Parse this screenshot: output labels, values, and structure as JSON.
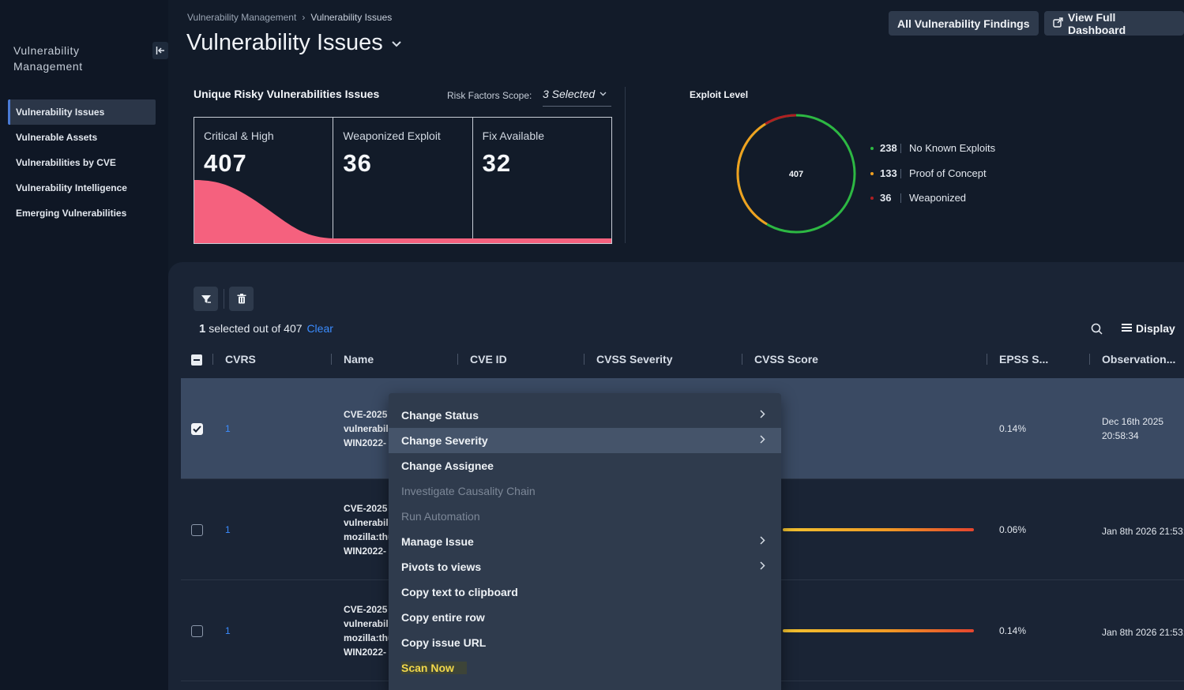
{
  "sidebar": {
    "title": "Vulnerability Management",
    "collapse_icon": "collapse-left-icon",
    "items": [
      {
        "label": "Vulnerability Issues"
      },
      {
        "label": "Vulnerable Assets"
      },
      {
        "label": "Vulnerabilities by CVE"
      },
      {
        "label": "Vulnerability Intelligence"
      },
      {
        "label": "Emerging Vulnerabilities"
      }
    ],
    "active_item": "Vulnerability Issues"
  },
  "breadcrumb": {
    "parent": "Vulnerability Management",
    "separator": "›",
    "current": "Vulnerability Issues"
  },
  "header": {
    "title": "Vulnerability Issues",
    "all_findings_label": "All Vulnerability Findings",
    "dashboard_label": "View Full Dashboard"
  },
  "metrics": {
    "title": "Unique Risky Vulnerabilities Issues",
    "scope_label": "Risk Factors Scope:",
    "scope_value": "3 Selected",
    "cards": [
      {
        "label": "Critical & High",
        "value": "407"
      },
      {
        "label": "Weaponized Exploit",
        "value": "36"
      },
      {
        "label": "Fix Available",
        "value": "32"
      }
    ],
    "accent_color": "#f5617e"
  },
  "exploit": {
    "title": "Exploit Level",
    "total": "407",
    "legend": [
      {
        "count": "238",
        "label": "No Known Exploits",
        "color": "#2db843"
      },
      {
        "count": "133",
        "label": "Proof of Concept",
        "color": "#f0a020"
      },
      {
        "count": "36",
        "label": "Weaponized",
        "color": "#b01e22"
      }
    ]
  },
  "table": {
    "selection": {
      "count": "1",
      "text": "selected out of 407",
      "clear": "Clear"
    },
    "display_label": "Display",
    "columns": [
      "CVRS",
      "Name",
      "CVE ID",
      "CVSS Severity",
      "CVSS Score",
      "EPSS S...",
      "Observation..."
    ],
    "rows": [
      {
        "checked": true,
        "cvrs": "1",
        "name": [
          "CVE-2025",
          "vulnerabili",
          "WIN2022-"
        ],
        "epss": "0.14%",
        "obs": [
          "Dec 16th 2025",
          "20:58:34"
        ]
      },
      {
        "checked": false,
        "cvrs": "1",
        "name": [
          "CVE-2025",
          "vulnerabili",
          "mozilla:thu",
          "WIN2022-"
        ],
        "epss": "0.06%",
        "obs": [
          "Jan 8th 2026 21:53:"
        ]
      },
      {
        "checked": false,
        "cvrs": "1",
        "name": [
          "CVE-2025",
          "vulnerabili",
          "mozilla:thu",
          "WIN2022-"
        ],
        "epss": "0.14%",
        "obs": [
          "Jan 8th 2026 21:53:"
        ]
      }
    ]
  },
  "context_menu": {
    "items": [
      {
        "label": "Change Status",
        "submenu": true,
        "disabled": false
      },
      {
        "label": "Change Severity",
        "submenu": true,
        "disabled": false,
        "hover": true
      },
      {
        "label": "Change Assignee",
        "submenu": false,
        "disabled": false
      },
      {
        "label": "Investigate Causality Chain",
        "submenu": false,
        "disabled": true
      },
      {
        "label": "Run Automation",
        "submenu": false,
        "disabled": true
      },
      {
        "label": "Manage Issue",
        "submenu": true,
        "disabled": false
      },
      {
        "label": "Pivots to views",
        "submenu": true,
        "disabled": false
      },
      {
        "label": "Copy text to clipboard",
        "submenu": false,
        "disabled": false
      },
      {
        "label": "Copy entire row",
        "submenu": false,
        "disabled": false
      },
      {
        "label": "Copy issue URL",
        "submenu": false,
        "disabled": false
      },
      {
        "label": "Scan Now",
        "submenu": false,
        "disabled": false,
        "highlight_color": "#f2d84a"
      }
    ]
  }
}
